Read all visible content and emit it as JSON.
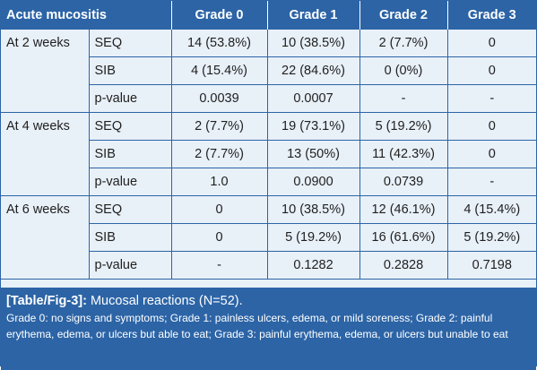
{
  "table": {
    "headers": [
      "Acute mucositis",
      "Grade 0",
      "Grade 1",
      "Grade 2",
      "Grade 3"
    ],
    "groups": [
      {
        "period": "At 2 weeks",
        "rows": [
          {
            "label": "SEQ",
            "cells": [
              "14 (53.8%)",
              "10 (38.5%)",
              "2 (7.7%)",
              "0"
            ]
          },
          {
            "label": "SIB",
            "cells": [
              "4 (15.4%)",
              "22 (84.6%)",
              "0 (0%)",
              "0"
            ]
          },
          {
            "label": "p-value",
            "cells": [
              "0.0039",
              "0.0007",
              "-",
              "-"
            ]
          }
        ]
      },
      {
        "period": "At 4 weeks",
        "rows": [
          {
            "label": "SEQ",
            "cells": [
              "2 (7.7%)",
              "19 (73.1%)",
              "5 (19.2%)",
              "0"
            ]
          },
          {
            "label": "SIB",
            "cells": [
              "2 (7.7%)",
              "13 (50%)",
              "11 (42.3%)",
              "0"
            ]
          },
          {
            "label": "p-value",
            "cells": [
              "1.0",
              "0.0900",
              "0.0739",
              "-"
            ]
          }
        ]
      },
      {
        "period": "At 6 weeks",
        "rows": [
          {
            "label": "SEQ",
            "cells": [
              "0",
              "10 (38.5%)",
              "12 (46.1%)",
              "4 (15.4%)"
            ]
          },
          {
            "label": "SIB",
            "cells": [
              "0",
              "5 (19.2%)",
              "16 (61.6%)",
              "5 (19.2%)"
            ]
          },
          {
            "label": "p-value",
            "cells": [
              "-",
              "0.1282",
              "0.2828",
              "0.7198"
            ]
          }
        ]
      }
    ]
  },
  "caption": {
    "label": "[Table/Fig-3]:",
    "title": " Mucosal reactions (N=52).",
    "note": "Grade 0: no signs and symptoms; Grade 1: painless ulcers, edema, or mild soreness; Grade 2: painful erythema, edema, or ulcers but able to eat; Grade 3: painful erythema, edema, or ulcers but unable to eat"
  }
}
